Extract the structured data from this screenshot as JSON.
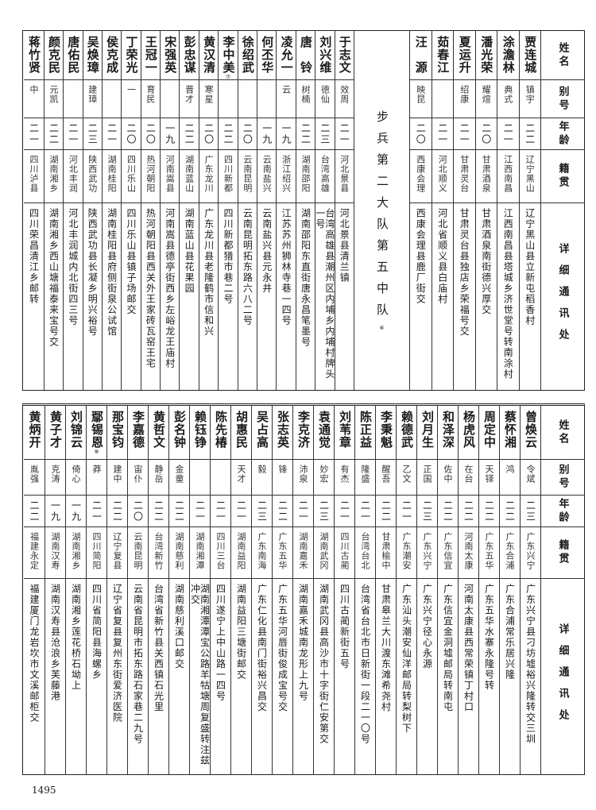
{
  "headers": {
    "name": "姓名",
    "alias": "别号",
    "age": "年龄",
    "origin": "籍贯",
    "address": "详细通讯处"
  },
  "top_table": {
    "right_group": [
      {
        "name": "贾连城",
        "alias": "镇宇",
        "age": "二二",
        "origin": "辽宁黑山",
        "address": "辽宁黑山县立新屯稻香村"
      },
      {
        "name": "涂澹林",
        "alias": "典式",
        "age": "二一",
        "origin": "江西南昌",
        "address": "江西南昌县塔城乡济世堂号转南涂村"
      },
      {
        "name": "潘光荣",
        "alias": "耀煊",
        "age": "二〇",
        "origin": "甘肃酒泉",
        "address": "甘肃酒泉南街德兴厚交"
      },
      {
        "name": "夏运升",
        "alias": "绍康",
        "age": "二一",
        "origin": "甘肃灵台",
        "address": "甘肃灵台县独店乡荣福号交"
      },
      {
        "name": "茹春江",
        "alias": "",
        "age": "二一",
        "origin": "河北顺义",
        "address": "河北省顺义县白庙村"
      },
      {
        "name": "汪　源",
        "alias": "映昆",
        "age": "二〇",
        "origin": "西康会理",
        "address": "西康会理县鹿厂街交"
      }
    ],
    "section_title": "步兵第二大队第五中队",
    "section_note": "⑥",
    "left_group": [
      {
        "name": "于志文",
        "alias": "效周",
        "age": "二一",
        "origin": "河北景县",
        "address": "河北景县清兰镇"
      },
      {
        "name": "刘兴维",
        "alias": "德仙",
        "age": "二三",
        "origin": "台湾高雄",
        "address": "台湾高雄县潮州区内埔乡内埔村牌头一号"
      },
      {
        "name": "唐　铃",
        "alias": "树楠",
        "age": "二二",
        "origin": "湖南邵阳",
        "address": "湖南邵阳东直街唐永昌笔墨号"
      },
      {
        "name": "凌允一",
        "alias": "云",
        "age": "一九",
        "origin": "浙江绍兴",
        "address": "江苏苏州狮林寺巷一四号"
      },
      {
        "name": "何丕华",
        "alias": "",
        "age": "一九",
        "origin": "云南盐兴",
        "address": "云南盐兴县元永井"
      },
      {
        "name": "徐绍武",
        "alias": "",
        "age": "二〇",
        "origin": "云南昆明",
        "address": "云南昆明拓东路六八二号"
      },
      {
        "name": "李中美",
        "note": "⑦",
        "alias": "",
        "age": "二二",
        "origin": "四川新都",
        "address": "四川新都猎市巷二号"
      },
      {
        "name": "黄汉清",
        "alias": "寒星",
        "age": "二〇",
        "origin": "广东龙川",
        "address": "广东龙川县老隆鹤市信和兴"
      },
      {
        "name": "彭忠谋",
        "alias": "晋才",
        "age": "二二",
        "origin": "湖南蓝山",
        "address": "湖南蓝山县花果园"
      },
      {
        "name": "宋强英",
        "alias": "",
        "age": "一九",
        "origin": "河南嵩县",
        "address": "河南嵩县德亭街西乡左峪龙王庙村"
      },
      {
        "name": "王冠一",
        "alias": "育民",
        "age": "二〇",
        "origin": "热河朝阳",
        "address": "热河朝阳县西关外王家砖瓦窑王宅"
      },
      {
        "name": "丁荣光",
        "alias": "一",
        "age": "二〇",
        "origin": "四川乐山",
        "address": "四川乐山县镇子场邮交"
      },
      {
        "name": "侯克成",
        "alias": "",
        "age": "二一",
        "origin": "湖南桂阳",
        "address": "湖南桂阳县府侧街泉公试馆"
      },
      {
        "name": "吴焕璋",
        "alias": "建璋",
        "age": "二三",
        "origin": "陕西武功",
        "address": "陕西武功县长凝乡明兴裕号"
      },
      {
        "name": "唐佑民",
        "alias": "",
        "age": "二一",
        "origin": "河北丰润",
        "address": "河北丰润城内北街四三号"
      },
      {
        "name": "颜克民",
        "alias": "元凯",
        "age": "二二",
        "origin": "湖南湘乡",
        "address": "湖南湘乡西山塘福泰来宝号交"
      },
      {
        "name": "蒋竹贤",
        "alias": "中",
        "age": "二一",
        "origin": "四川泸县",
        "address": "四川荣昌清江乡邮转"
      }
    ]
  },
  "bottom_table": [
    {
      "name": "曾焕云",
      "alias": "令斌",
      "age": "二三",
      "origin": "广东兴宁",
      "address": "广东兴宁县刁坊墟裕兴隆转交三圳"
    },
    {
      "name": "蔡怀湘",
      "alias": "鸿",
      "age": "二二",
      "origin": "广东合浦",
      "address": "广东合浦常乐居兴隆"
    },
    {
      "name": "周定中",
      "alias": "天铎",
      "age": "二二",
      "origin": "广东五华",
      "address": "广东五华水寨永隆号转"
    },
    {
      "name": "杨虎风",
      "alias": "在台",
      "age": "二二",
      "origin": "河南太康",
      "address": "河南太康县西常荣镇丁村口"
    },
    {
      "name": "和泽深",
      "alias": "佐中",
      "age": "二二",
      "origin": "广东信宜",
      "address": "广东信宜金洞墟邮局转南屯"
    },
    {
      "name": "刘月生",
      "alias": "正国",
      "age": "二三",
      "origin": "广东兴宁",
      "address": "广东兴宁径心永源"
    },
    {
      "name": "赖德武",
      "alias": "乙文",
      "age": "二一",
      "origin": "广东潮安",
      "address": "广东汕头潮安仙洋邮局转梨树下"
    },
    {
      "name": "李秉魁",
      "alias": "醒吾",
      "age": "二二",
      "origin": "甘肃榆中",
      "address": "甘肃皋兰大川渡东滩希尧村"
    },
    {
      "name": "陈正益",
      "alias": "隆盛",
      "age": "二一",
      "origin": "台湾台北",
      "address": "台湾省台北市日新街一段二一〇号"
    },
    {
      "name": "刘苇章",
      "alias": "有杰",
      "age": "二一",
      "origin": "四川古蔺",
      "address": "四川古蔺新街五号"
    },
    {
      "name": "袁通觉",
      "alias": "妙宏",
      "age": "二三",
      "origin": "湖南武冈",
      "address": "湖南武冈县高沙市十字街仁安第交"
    },
    {
      "name": "李克济",
      "alias": "沛泉",
      "age": "二一",
      "origin": "湖南嘉禾",
      "address": "湖南嘉禾城南龙形上九号"
    },
    {
      "name": "张志英",
      "alias": "锋",
      "age": "二二",
      "origin": "广东五华",
      "address": "广东五华河唇街俊成宝号交"
    },
    {
      "name": "吴占高",
      "alias": "毅",
      "age": "二三",
      "origin": "广东南海",
      "address": "广东仁化县南门街裕兴昌交"
    },
    {
      "name": "胡惠民",
      "alias": "天才",
      "age": "二一",
      "origin": "湖南益阳",
      "address": "湖南益阳三塘街邮交"
    },
    {
      "name": "陈先椿",
      "alias": "",
      "age": "二一",
      "origin": "四川三台",
      "address": "四川遂宁上中山路一四号"
    },
    {
      "name": "赖钰铮",
      "alias": "",
      "age": "二一",
      "origin": "湖南湘潭",
      "address": "湖南湘潭潭宝公路羊牯塘周复盛转注兹冲交"
    },
    {
      "name": "彭名钟",
      "alias": "金童",
      "age": "二二",
      "origin": "湖南慈利",
      "address": "湖南慈利溪口邮交"
    },
    {
      "name": "黄哲文",
      "alias": "静岳",
      "age": "二二",
      "origin": "台湾新竹",
      "address": "台湾省新竹县关西镇石光里"
    },
    {
      "name": "李嘉德",
      "alias": "宙仆",
      "age": "二〇",
      "origin": "云南昆明",
      "address": "云南省昆明市拓东路石家巷二九号"
    },
    {
      "name": "那宝钧",
      "alias": "建中",
      "age": "二二",
      "origin": "辽宁复县",
      "address": "辽宁省复县复州东街爱济医院"
    },
    {
      "name": "鄢锡恩",
      "note": "⑧",
      "alias": "莽",
      "age": "二一",
      "origin": "四川简阳",
      "address": "四川省简阳县海螺乡"
    },
    {
      "name": "刘锦云",
      "alias": "倚心",
      "age": "一九",
      "origin": "湖南湘乡",
      "address": "湖南湘乡莲花桥石坳上"
    },
    {
      "name": "黄子才",
      "alias": "克涛",
      "age": "一九",
      "origin": "湖南汉寿",
      "address": "湖南汉寿县沧浪乡芙藤港"
    },
    {
      "name": "黄炳开",
      "alias": "胤强",
      "age": "二二",
      "origin": "福建永定",
      "address": "福建厦门龙岩坎市文溪邮柜交"
    }
  ],
  "page_number": "1495"
}
